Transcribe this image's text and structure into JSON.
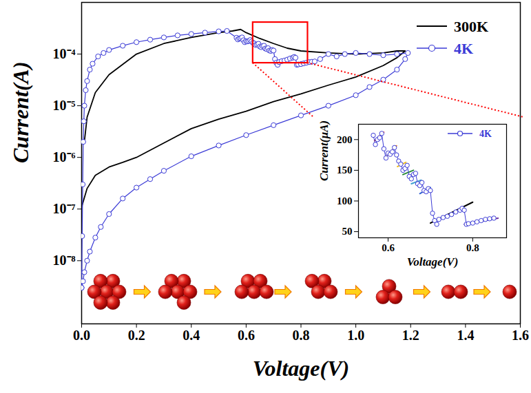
{
  "chart_data": [
    {
      "type": "line",
      "xlabel": "Voltage(V)",
      "ylabel": "Current(A)",
      "xlim": [
        0,
        1.6
      ],
      "xticks": [
        {
          "value": 0,
          "label": "0.0"
        },
        0.2,
        0.4,
        0.6,
        0.8,
        {
          "value": 1,
          "label": "1.0"
        },
        1.2,
        1.4,
        1.6
      ],
      "ylim": [
        6e-10,
        0.001
      ],
      "yticks": [
        {
          "value": 1e-08,
          "label": "10⁻⁸"
        },
        {
          "value": 1e-07,
          "label": "10⁻⁷"
        },
        {
          "value": 1e-06,
          "label": "10⁻⁶"
        },
        {
          "value": 1e-05,
          "label": "10⁻⁵"
        },
        {
          "value": 0.0001,
          "label": "10⁻⁴"
        }
      ],
      "log": "y",
      "grid": false,
      "legend": "top-right",
      "series": [
        {
          "name": "300K",
          "color": "#000000",
          "marker": "none",
          "x": [
            0,
            0.02,
            0.05,
            0.1,
            0.15,
            0.2,
            0.3,
            0.4,
            0.5,
            0.6,
            0.7,
            0.8,
            0.9,
            1.0,
            1.1,
            1.15,
            1.18,
            1.15,
            1.1,
            1.0,
            0.9,
            0.8,
            0.75,
            0.7,
            0.65,
            0.6,
            0.58,
            0.55,
            0.5,
            0.4,
            0.3,
            0.2,
            0.1,
            0.05,
            0.02,
            0.01
          ],
          "values": [
            1.1e-07,
            2.5e-07,
            4.5e-07,
            6.5e-07,
            8e-07,
            1e-06,
            1.9e-06,
            3.6e-06,
            5.5e-06,
            7.8e-06,
            1.2e-05,
            1.7e-05,
            2.5e-05,
            3.6e-05,
            6e-05,
            8.5e-05,
            0.000115,
            0.000115,
            0.000105,
            0.0001,
            0.000105,
            0.000115,
            0.00013,
            0.00016,
            0.0002,
            0.00026,
            0.0003,
            0.00028,
            0.00026,
            0.00021,
            0.00016,
            0.0001,
            4e-05,
            1.8e-05,
            6e-06,
            2e-06
          ]
        },
        {
          "name": "4K",
          "color": "#3b3bd6",
          "marker": "circle",
          "x": [
            0,
            0.002,
            0.004,
            0.006,
            0.008,
            0.01,
            0.015,
            0.02,
            0.03,
            0.04,
            0.06,
            0.08,
            0.1,
            0.15,
            0.2,
            0.25,
            0.3,
            0.35,
            0.4,
            0.45,
            0.5,
            0.53,
            0.565,
            0.57,
            0.575,
            0.58,
            0.585,
            0.59,
            0.595,
            0.6,
            0.605,
            0.61,
            0.615,
            0.62,
            0.625,
            0.63,
            0.635,
            0.64,
            0.645,
            0.65,
            0.655,
            0.66,
            0.665,
            0.67,
            0.675,
            0.68,
            0.685,
            0.69,
            0.695,
            0.7,
            0.705,
            0.71,
            0.715,
            0.72,
            0.73,
            0.74,
            0.75,
            0.76,
            0.77,
            0.775,
            0.78,
            0.785,
            0.79,
            0.8,
            0.81,
            0.82,
            0.83,
            0.84,
            0.85,
            0.87,
            0.9,
            0.93,
            0.96,
            1.0,
            1.05,
            1.1,
            1.15,
            1.19,
            1.18,
            1.15,
            1.1,
            1.05,
            1.0,
            0.9,
            0.8,
            0.7,
            0.6,
            0.5,
            0.4,
            0.3,
            0.25,
            0.2,
            0.15,
            0.1,
            0.07,
            0.05,
            0.03,
            0.02,
            0.01,
            0.005,
            0
          ],
          "values": [
            3e-09,
            3e-08,
            3e-07,
            2e-06,
            5e-06,
            1e-05,
            2e-05,
            3e-05,
            5e-05,
            6.5e-05,
            9e-05,
            0.000105,
            0.00012,
            0.000145,
            0.00017,
            0.00019,
            0.00021,
            0.00023,
            0.000245,
            0.00026,
            0.000275,
            0.00028,
            0.000207,
            0.000192,
            0.0002,
            0.000203,
            0.00021,
            0.000185,
            0.00017,
            0.000178,
            0.000176,
            0.00018,
            0.000187,
            0.000175,
            0.000165,
            0.00016,
            0.00015,
            0.000153,
            0.000158,
            0.00014,
            0.000136,
            0.000143,
            0.000145,
            0.000128,
            0.000125,
            0.00013,
            0.000117,
            0.000115,
            0.00012,
            0.000117,
            8e-05,
            6.8e-05,
            6.2e-05,
            7e-05,
            7.3e-05,
            7.5e-05,
            7.8e-05,
            8.2e-05,
            8.5e-05,
            8.8e-05,
            8.5e-05,
            6.2e-05,
            6.3e-05,
            6.4e-05,
            6.6e-05,
            6.8e-05,
            7e-05,
            7.1e-05,
            7.2e-05,
            8e-05,
            0.0001,
            9e-05,
            0.0001,
            0.000105,
            0.0001,
            9.5e-05,
            0.0001,
            0.000105,
            8e-05,
            5e-05,
            3.2e-05,
            2.3e-05,
            1.6e-05,
            1e-05,
            6.5e-06,
            4.2e-06,
            2.7e-06,
            1.7e-06,
            1.05e-06,
            5.5e-07,
            3.8e-07,
            2.6e-07,
            1.6e-07,
            8e-08,
            4.5e-08,
            2.8e-08,
            1.5e-08,
            1e-08,
            6e-09,
            4e-09,
            3e-09
          ]
        }
      ],
      "highlight_box": {
        "x": [
          0.625,
          0.825
        ],
        "y": [
          6.7e-05,
          0.00041
        ],
        "color": "#ff0000"
      }
    },
    {
      "type": "line",
      "xlabel": "Voltage(V)",
      "ylabel": "Current(µA)",
      "xlim": [
        0.53,
        0.88
      ],
      "xticks": [
        0.6,
        0.8
      ],
      "ylim": [
        40,
        225
      ],
      "yticks": [
        50,
        100,
        150,
        200
      ],
      "grid": false,
      "legend": "top-right",
      "series": [
        {
          "name": "4K",
          "color": "#3b3bd6",
          "marker": "circle",
          "x": [
            0.565,
            0.57,
            0.575,
            0.58,
            0.585,
            0.59,
            0.595,
            0.6,
            0.605,
            0.61,
            0.615,
            0.62,
            0.625,
            0.63,
            0.635,
            0.64,
            0.645,
            0.65,
            0.655,
            0.66,
            0.665,
            0.67,
            0.675,
            0.68,
            0.685,
            0.69,
            0.695,
            0.7,
            0.705,
            0.71,
            0.715,
            0.72,
            0.73,
            0.74,
            0.75,
            0.76,
            0.77,
            0.775,
            0.78,
            0.785,
            0.79,
            0.8,
            0.81,
            0.82,
            0.83,
            0.84,
            0.85
          ],
          "values": [
            207,
            192,
            200,
            203,
            210,
            185,
            170,
            178,
            176,
            180,
            187,
            175,
            165,
            160,
            150,
            153,
            158,
            140,
            136,
            143,
            145,
            128,
            125,
            130,
            117,
            115,
            120,
            117,
            80,
            68,
            62,
            70,
            73,
            75,
            78,
            82,
            85,
            88,
            85,
            62,
            63,
            64,
            66,
            68,
            70,
            71,
            72
          ]
        }
      ],
      "fits": [
        {
          "color": "#e8402a",
          "x": [
            0.568,
            0.59
          ],
          "values": [
            198,
            212
          ]
        },
        {
          "color": "#f08a20",
          "x": [
            0.595,
            0.62
          ],
          "values": [
            172,
            190
          ]
        },
        {
          "color": "#f0c020",
          "x": [
            0.622,
            0.642
          ],
          "values": [
            156,
            163
          ]
        },
        {
          "color": "#2a8a3a",
          "x": [
            0.635,
            0.66
          ],
          "values": [
            143,
            150
          ]
        },
        {
          "color": "#40a0d0",
          "x": [
            0.655,
            0.678
          ],
          "values": [
            128,
            134
          ]
        },
        {
          "color": "#3060d0",
          "x": [
            0.675,
            0.7
          ],
          "values": [
            112,
            122
          ]
        },
        {
          "color": "#000000",
          "x": [
            0.7,
            0.8
          ],
          "values": [
            64,
            98
          ]
        },
        {
          "color": "#7030a0",
          "x": [
            0.78,
            0.86
          ],
          "values": [
            62,
            72
          ]
        }
      ]
    }
  ]
}
